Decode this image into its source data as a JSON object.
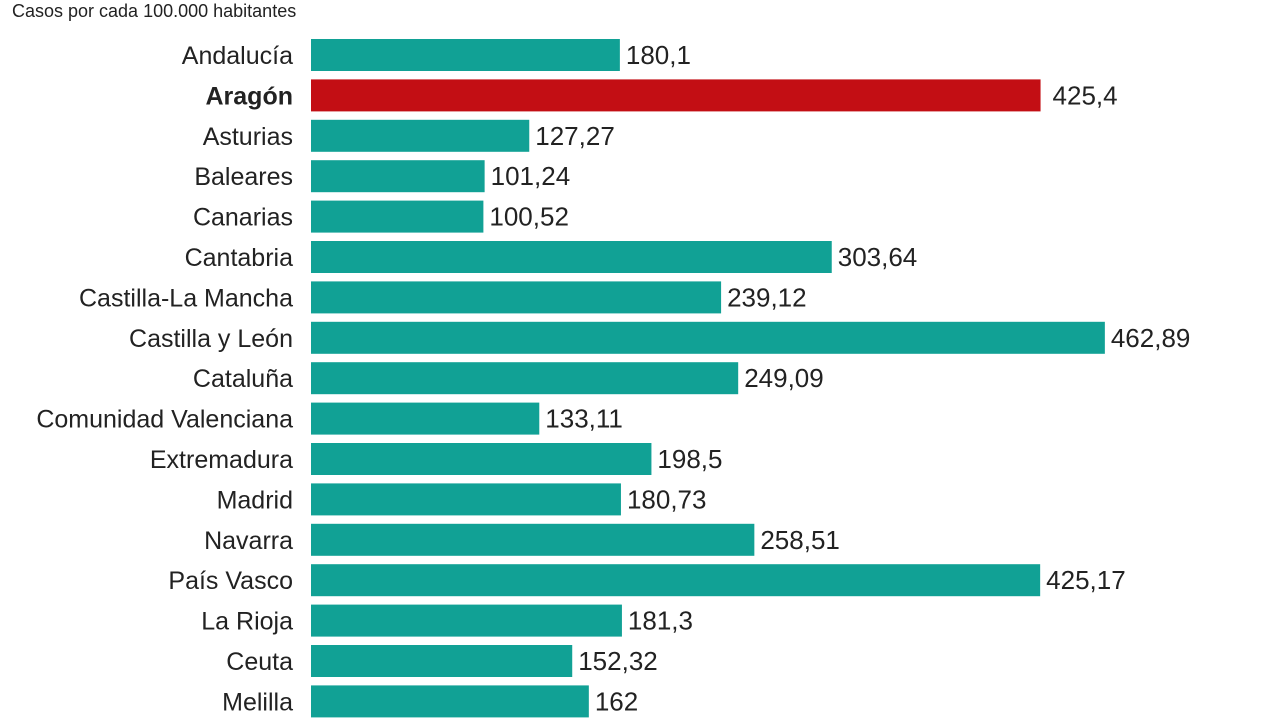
{
  "chart_data": {
    "type": "bar",
    "orientation": "horizontal",
    "subtitle": "Casos por cada 100.000 habitantes",
    "categories": [
      "Andalucía",
      "Aragón",
      "Asturias",
      "Baleares",
      "Canarias",
      "Cantabria",
      "Castilla-La Mancha",
      "Castilla y León",
      "Cataluña",
      "Comunidad Valenciana",
      "Extremadura",
      "Madrid",
      "Navarra",
      "País Vasco",
      "La Rioja",
      "Ceuta",
      "Melilla"
    ],
    "values": [
      180.1,
      425.4,
      127.27,
      101.24,
      100.52,
      303.64,
      239.12,
      462.89,
      249.09,
      133.11,
      198.5,
      180.73,
      258.51,
      425.17,
      181.3,
      152.32,
      162
    ],
    "value_labels": [
      "180,1",
      "425,4",
      "127,27",
      "101,24",
      "100,52",
      "303,64",
      "239,12",
      "462,89",
      "249,09",
      "133,11",
      "198,5",
      "180,73",
      "258,51",
      "425,17",
      "181,3",
      "152,32",
      "162"
    ],
    "highlight": "Aragón",
    "colors": {
      "default": "#11a195",
      "highlight": "#c30e14"
    }
  }
}
